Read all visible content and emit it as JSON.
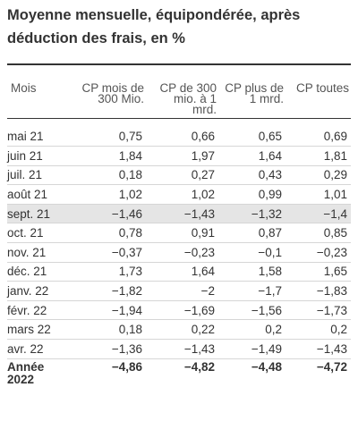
{
  "title": "Moyenne mensuelle, équipondérée, après déduction des frais, en %",
  "columns": [
    "Mois",
    "CP mois de 300 Mio.",
    "CP de 300 mio. à 1 mrd.",
    "CP plus de 1 mrd.",
    "CP toutes"
  ],
  "rows": [
    {
      "month": "mai 21",
      "values": [
        "0,75",
        "0,66",
        "0,65",
        "0,69"
      ]
    },
    {
      "month": "juin 21",
      "values": [
        "1,84",
        "1,97",
        "1,64",
        "1,81"
      ]
    },
    {
      "month": "juil. 21",
      "values": [
        "0,18",
        "0,27",
        "0,43",
        "0,29"
      ]
    },
    {
      "month": "août 21",
      "values": [
        "1,02",
        "1,02",
        "0,99",
        "1,01"
      ]
    },
    {
      "month": "sept. 21",
      "values": [
        "−1,46",
        "−1,43",
        "−1,32",
        "−1,4"
      ]
    },
    {
      "month": "oct. 21",
      "values": [
        "0,78",
        "0,91",
        "0,87",
        "0,85"
      ]
    },
    {
      "month": "nov. 21",
      "values": [
        "−0,37",
        "−0,23",
        "−0,1",
        "−0,23"
      ]
    },
    {
      "month": "déc. 21",
      "values": [
        "1,73",
        "1,64",
        "1,58",
        "1,65"
      ]
    },
    {
      "month": "janv. 22",
      "values": [
        "−1,82",
        "−2",
        "−1,7",
        "−1,83"
      ]
    },
    {
      "month": "févr. 22",
      "values": [
        "−1,94",
        "−1,69",
        "−1,56",
        "−1,73"
      ]
    },
    {
      "month": "mars 22",
      "values": [
        "0,18",
        "0,22",
        "0,2",
        "0,2"
      ]
    },
    {
      "month": "avr. 22",
      "values": [
        "−1,36",
        "−1,43",
        "−1,49",
        "−1,43"
      ]
    }
  ],
  "total": {
    "label": "Année 2022",
    "values": [
      "−4,86",
      "−4,82",
      "−4,48",
      "−4,72"
    ]
  }
}
